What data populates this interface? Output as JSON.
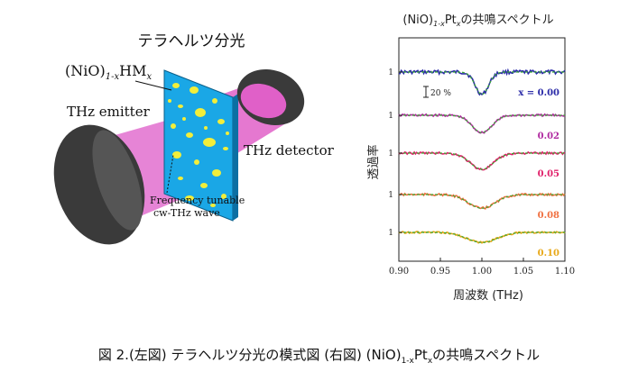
{
  "left": {
    "title": "テラヘルツ分光",
    "sample_label_main": "(NiO)",
    "sample_label_sub": "1-x",
    "sample_label_hm": "HM",
    "sample_label_x": "x",
    "emitter_label": "THz emitter",
    "detector_label": "THz detector",
    "wave_label_line1": "Frequency tunable",
    "wave_label_line2": "cw-THz wave"
  },
  "chart_data": {
    "type": "line",
    "title_main": "(NiO)",
    "title_sub": "1-x",
    "title_pt": "Pt",
    "title_x": "x",
    "title_tail": "の共鳴スペクトル",
    "xlabel": "周波数 (THz)",
    "ylabel": "透過率",
    "xlim": [
      0.9,
      1.1
    ],
    "xticks": [
      "0.90",
      "0.95",
      "1.00",
      "1.05",
      "1.10"
    ],
    "ytick_label": "1",
    "scale_bar_label": "20 %",
    "grid": false,
    "series": [
      {
        "name": "x = 0.00",
        "color": "#2b2ba8",
        "offset": 0,
        "depth": 0.62,
        "width": 0.008,
        "noise": 0.1
      },
      {
        "name": "0.02",
        "color": "#b02aa0",
        "offset": 1,
        "depth": 0.48,
        "width": 0.012,
        "noise": 0.06
      },
      {
        "name": "0.05",
        "color": "#e0206a",
        "offset": 2,
        "depth": 0.45,
        "width": 0.014,
        "noise": 0.06
      },
      {
        "name": "0.08",
        "color": "#f07040",
        "offset": 3,
        "depth": 0.38,
        "width": 0.016,
        "noise": 0.06
      },
      {
        "name": "0.10",
        "color": "#e8a818",
        "offset": 4,
        "depth": 0.28,
        "width": 0.018,
        "noise": 0.05
      }
    ],
    "fit_color": "#3aa832"
  },
  "caption": "図 2.(左図) テラヘルツ分光の模式図 (右図) (NiO)1-xPtx の共鳴スペクトル",
  "caption_parts": {
    "prefix": "図 2.(左図) テラヘルツ分光の模式図 (右図) (NiO)",
    "sub": "1-x",
    "pt": "Pt",
    "x": "x",
    "tail": "の共鳴スペクトル"
  }
}
